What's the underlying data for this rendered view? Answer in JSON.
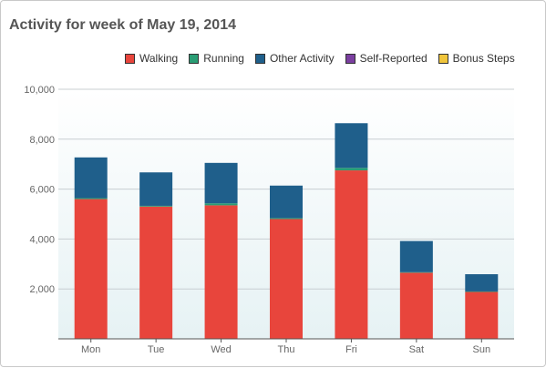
{
  "widget": {
    "title": "Activity for week of May 19, 2014"
  },
  "legend": {
    "items": [
      {
        "label": "Walking",
        "color": "#e8453c"
      },
      {
        "label": "Running",
        "color": "#2a9d74"
      },
      {
        "label": "Other Activity",
        "color": "#1f5f8b"
      },
      {
        "label": "Self-Reported",
        "color": "#7b3fa0"
      },
      {
        "label": "Bonus Steps",
        "color": "#f0c53c"
      }
    ]
  },
  "chart_data": {
    "type": "bar",
    "stacked": true,
    "categories": [
      "Mon",
      "Tue",
      "Wed",
      "Thu",
      "Fri",
      "Sat",
      "Sun"
    ],
    "series": [
      {
        "name": "Walking",
        "color": "#e8453c",
        "values": [
          5600,
          5300,
          5350,
          4800,
          6750,
          2650,
          1880
        ]
      },
      {
        "name": "Running",
        "color": "#2a9d74",
        "values": [
          40,
          30,
          80,
          40,
          100,
          20,
          20
        ]
      },
      {
        "name": "Other Activity",
        "color": "#1f5f8b",
        "values": [
          1630,
          1340,
          1620,
          1300,
          1790,
          1250,
          690
        ]
      },
      {
        "name": "Self-Reported",
        "color": "#7b3fa0",
        "values": [
          0,
          0,
          0,
          0,
          0,
          0,
          0
        ]
      },
      {
        "name": "Bonus Steps",
        "color": "#f0c53c",
        "values": [
          0,
          0,
          0,
          0,
          0,
          0,
          0
        ]
      }
    ],
    "y_ticks": [
      "2,000",
      "4,000",
      "6,000",
      "8,000",
      "10,000"
    ],
    "y_tick_values": [
      2000,
      4000,
      6000,
      8000,
      10000
    ],
    "ylim": [
      0,
      10000
    ],
    "grid": true,
    "legend_position": "top-right"
  }
}
